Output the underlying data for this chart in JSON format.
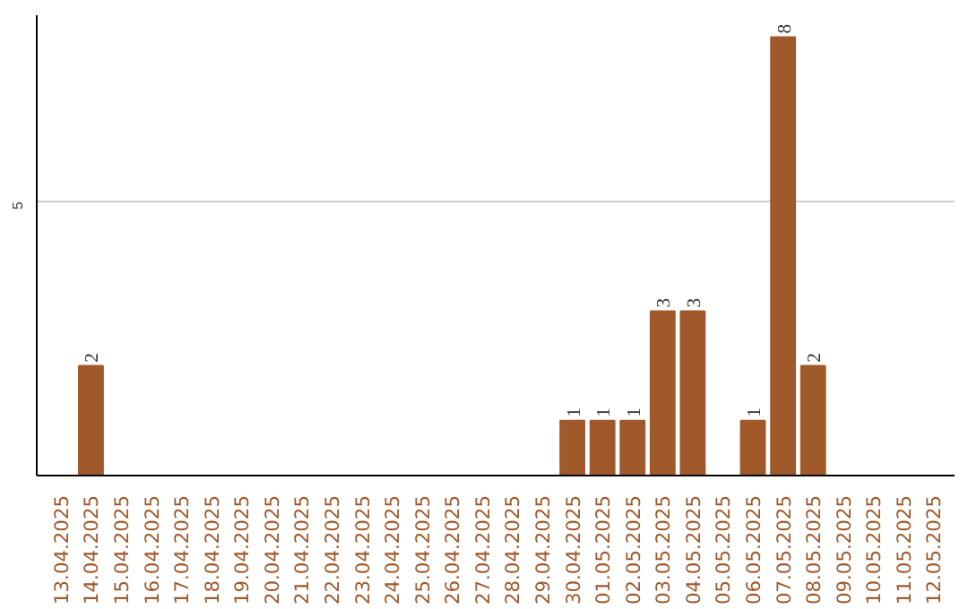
{
  "chart_data": {
    "type": "bar",
    "categories": [
      "13.04.2025",
      "14.04.2025",
      "15.04.2025",
      "16.04.2025",
      "17.04.2025",
      "18.04.2025",
      "19.04.2025",
      "20.04.2025",
      "21.04.2025",
      "22.04.2025",
      "23.04.2025",
      "24.04.2025",
      "25.04.2025",
      "26.04.2025",
      "27.04.2025",
      "28.04.2025",
      "29.04.2025",
      "30.04.2025",
      "01.05.2025",
      "02.05.2025",
      "03.05.2025",
      "04.05.2025",
      "05.05.2025",
      "06.05.2025",
      "07.05.2025",
      "08.05.2025",
      "09.05.2025",
      "10.05.2025",
      "11.05.2025",
      "12.05.2025"
    ],
    "values": [
      0,
      2,
      0,
      0,
      0,
      0,
      0,
      0,
      0,
      0,
      0,
      0,
      0,
      0,
      0,
      0,
      0,
      1,
      1,
      1,
      3,
      3,
      0,
      1,
      8,
      2,
      0,
      0,
      0,
      0
    ],
    "value_labels": [
      null,
      "2",
      null,
      null,
      null,
      null,
      null,
      null,
      null,
      null,
      null,
      null,
      null,
      null,
      null,
      null,
      null,
      "1",
      "1",
      "1",
      "3",
      "3",
      null,
      "1",
      "8",
      "2",
      null,
      null,
      null,
      null
    ],
    "color": "#a0592a",
    "ylim": [
      0,
      8.4
    ],
    "yticks": [
      5
    ],
    "grid": "y"
  }
}
